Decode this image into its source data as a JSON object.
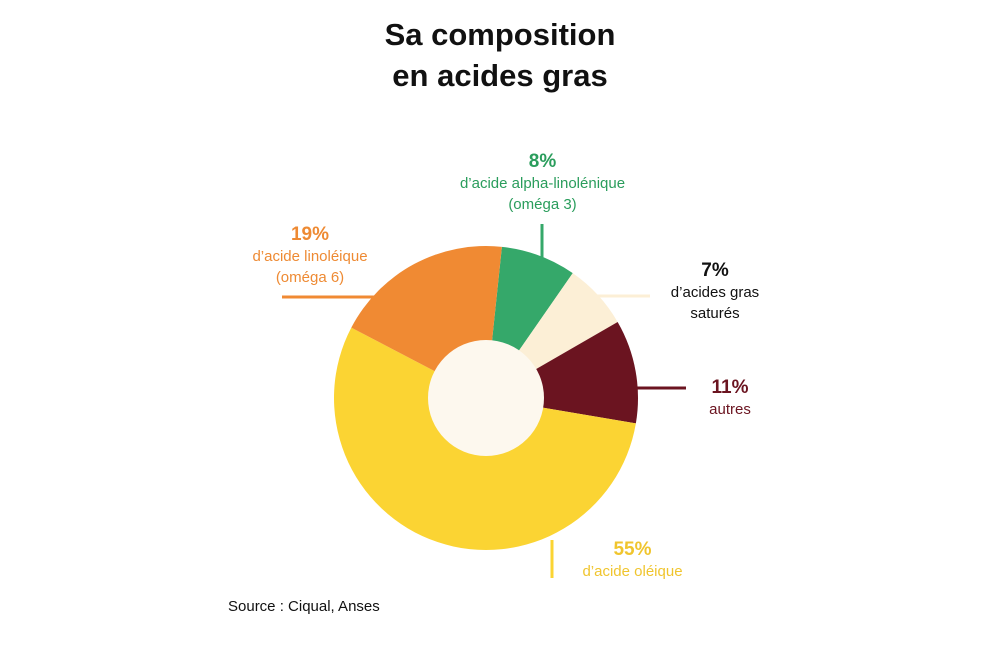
{
  "chart_data": {
    "type": "donut",
    "title_lines": [
      "Sa composition",
      "en acides gras"
    ],
    "slices": [
      {
        "label": "d’acide alpha-linolénique",
        "sublabel": "(oméga 3)",
        "value": 8,
        "display": "8%",
        "color": "#35A86A",
        "text_color": "#2A9D5C"
      },
      {
        "label": "d’acides gras",
        "sublabel": "saturés",
        "value": 7,
        "display": "7%",
        "color": "#FCEFD6",
        "text_color": "#111111"
      },
      {
        "label": "autres",
        "sublabel": "",
        "value": 11,
        "display": "11%",
        "color": "#6B1420",
        "text_color": "#6B1420"
      },
      {
        "label": "d’acide oléique",
        "sublabel": "",
        "value": 55,
        "display": "55%",
        "color": "#FBD433",
        "text_color": "#F0C52E"
      },
      {
        "label": "d’acide linoléique",
        "sublabel": "(oméga 6)",
        "value": 19,
        "display": "19%",
        "color": "#F08A33",
        "text_color": "#EE8A33"
      }
    ],
    "center_color": "#FDF8EE"
  },
  "source": "Source : Ciqual, Anses"
}
